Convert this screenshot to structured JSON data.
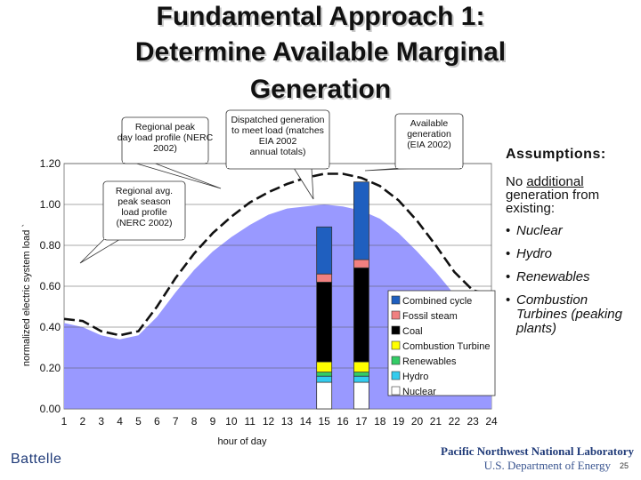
{
  "slide": {
    "title_lines": [
      "Fundamental Approach 1:",
      "Determine Available Marginal",
      "Generation"
    ],
    "assumptions": {
      "title": "Assumptions:",
      "intro_prefix": "No ",
      "intro_underlined": "additional",
      "intro_suffix": " generation from existing:",
      "items": [
        "Nuclear",
        "Hydro",
        "Renewables",
        "Combustion Turbines (peaking plants)"
      ],
      "bullet": "•"
    },
    "footer": {
      "left": "Battelle",
      "right_line1": "Pacific Northwest National Laboratory",
      "right_line2": "U.S. Department of Energy",
      "page_number": "25"
    }
  },
  "callouts": [
    "Regional peak day load profile (NERC 2002)",
    "Dispatched generation to meet load (matches EIA 2002 annual totals)",
    "Available generation (EIA 2002)",
    "Regional avg. peak season load profile (NERC 2002)"
  ],
  "colors": {
    "area": "#9999ff",
    "combined_cycle": "#1f5fbf",
    "fossil_steam": "#f08080",
    "coal": "#000000",
    "combustion_turbine": "#ffff00",
    "renewables": "#33cc66",
    "hydro": "#33ccee",
    "nuclear": "#ffffff"
  },
  "chart_data": {
    "type": "area",
    "x": [
      1,
      2,
      3,
      4,
      5,
      6,
      7,
      8,
      9,
      10,
      11,
      12,
      13,
      14,
      15,
      16,
      17,
      18,
      19,
      20,
      21,
      22,
      23,
      24
    ],
    "xlabel": "hour of day",
    "ylabel": "normalized electric system load `",
    "ylim": [
      0.0,
      1.2
    ],
    "yticks": [
      "0.00",
      "0.20",
      "0.40",
      "0.60",
      "0.80",
      "1.00",
      "1.20"
    ],
    "grid": true,
    "series": [
      {
        "style": "filled-area",
        "values": [
          0.42,
          0.4,
          0.36,
          0.34,
          0.36,
          0.45,
          0.57,
          0.68,
          0.77,
          0.84,
          0.9,
          0.95,
          0.98,
          0.99,
          1.0,
          0.99,
          0.97,
          0.93,
          0.86,
          0.77,
          0.67,
          0.56,
          0.5,
          0.48
        ]
      },
      {
        "style": "dashed-line",
        "values": [
          0.44,
          0.43,
          0.38,
          0.36,
          0.38,
          0.5,
          0.64,
          0.76,
          0.86,
          0.94,
          1.01,
          1.06,
          1.1,
          1.13,
          1.15,
          1.15,
          1.13,
          1.09,
          1.02,
          0.92,
          0.8,
          0.67,
          0.58,
          0.56
        ]
      }
    ],
    "stacked_bars": [
      {
        "x": 15,
        "segments": [
          {
            "name": "Nuclear",
            "value": 0.13
          },
          {
            "name": "Hydro",
            "value": 0.03
          },
          {
            "name": "Renewables",
            "value": 0.02
          },
          {
            "name": "Combustion Turbine",
            "value": 0.05
          },
          {
            "name": "Coal",
            "value": 0.39
          },
          {
            "name": "Fossil steam",
            "value": 0.04
          },
          {
            "name": "Combined cycle",
            "value": 0.23
          }
        ]
      },
      {
        "x": 17,
        "segments": [
          {
            "name": "Nuclear",
            "value": 0.13
          },
          {
            "name": "Hydro",
            "value": 0.03
          },
          {
            "name": "Renewables",
            "value": 0.02
          },
          {
            "name": "Combustion Turbine",
            "value": 0.05
          },
          {
            "name": "Coal",
            "value": 0.46
          },
          {
            "name": "Fossil steam",
            "value": 0.04
          },
          {
            "name": "Combined cycle",
            "value": 0.38
          }
        ]
      }
    ],
    "legend": {
      "position": "bottom-right",
      "entries": [
        "Combined cycle",
        "Fossil steam",
        "Coal",
        "Combustion Turbine",
        "Renewables",
        "Hydro",
        "Nuclear"
      ]
    }
  }
}
